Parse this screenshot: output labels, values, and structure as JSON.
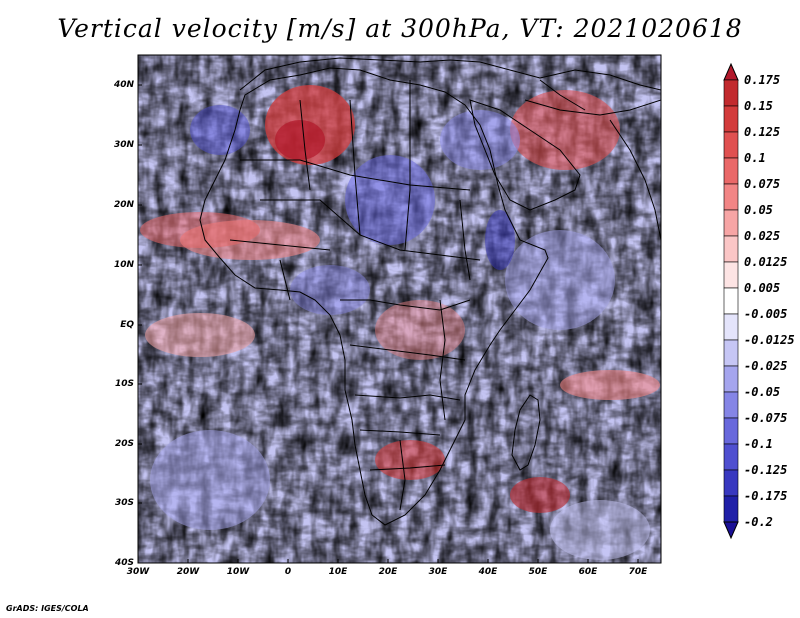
{
  "title": "Vertical velocity [m/s] at 300hPa, VT: 2021020618",
  "credit": "GrADS: IGES/COLA",
  "map": {
    "lat_ticks": [
      "40N",
      "30N",
      "20N",
      "10N",
      "EQ",
      "10S",
      "20S",
      "30S",
      "40S"
    ],
    "lon_ticks": [
      "30W",
      "20W",
      "10W",
      "0",
      "10E",
      "20E",
      "30E",
      "40E",
      "50E",
      "60E",
      "70E"
    ],
    "lat_range": [
      -40,
      45
    ],
    "lon_range": [
      -30,
      75
    ]
  },
  "colorbar": {
    "levels": [
      "0.175",
      "0.15",
      "0.125",
      "0.1",
      "0.075",
      "0.05",
      "0.025",
      "0.0125",
      "0.005",
      "-0.005",
      "-0.0125",
      "-0.025",
      "-0.05",
      "-0.075",
      "-0.1",
      "-0.125",
      "-0.175",
      "-0.2"
    ],
    "colors": [
      "#b2182b",
      "#c22a2e",
      "#d33b3b",
      "#e05050",
      "#ea6868",
      "#f28585",
      "#f7a5a5",
      "#fbc6c6",
      "#fde4e4",
      "#ffffff",
      "#e4e4fb",
      "#c6c6f5",
      "#a5a5ee",
      "#8585e6",
      "#6868dc",
      "#4f4fd0",
      "#3838c0",
      "#2020a8",
      "#1a1096"
    ]
  }
}
